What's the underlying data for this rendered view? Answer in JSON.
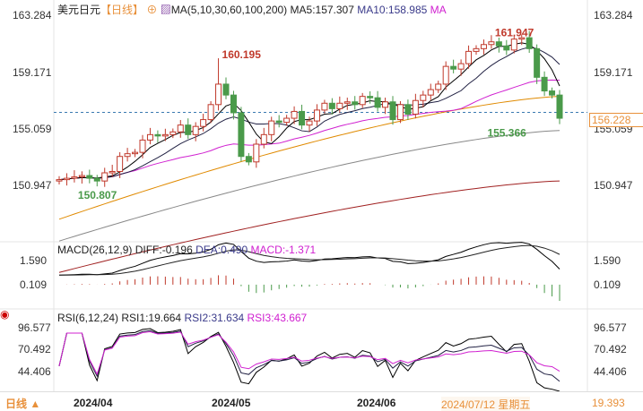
{
  "header": {
    "symbol": "美元日元",
    "period": "【日线】",
    "ma_label": "MA(5,10,30,60,100,200)",
    "ma5": "MA5:157.307",
    "ma10": "MA10:158.985",
    "ma_more": "MA"
  },
  "macd_header": {
    "label": "MACD(26,12,9)",
    "diff": "DIFF:-0.196",
    "dea": "DEA:0.490",
    "macd": "MACD:-1.371"
  },
  "rsi_header": {
    "label": "RSI(6,12,24)",
    "rsi1": "RSI1:19.664",
    "rsi2": "RSI2:31.634",
    "rsi3": "RSI3:43.667"
  },
  "axes": {
    "price": [
      "163.284",
      "159.171",
      "155.059",
      "150.947"
    ],
    "current_price": "156.228",
    "macd": [
      "1.590",
      "0.109"
    ],
    "rsi": [
      "96.577",
      "70.492",
      "44.406",
      "19.393"
    ]
  },
  "footer": {
    "period": "日线",
    "dates": [
      "2024/04",
      "2024/05",
      "2024/06"
    ],
    "cursor_date": "2024/07/12 星期五"
  },
  "annotations": {
    "high1": "160.195",
    "high2": "161.947",
    "low1": "150.807",
    "low2": "155.366"
  },
  "colors": {
    "up": "#c0392b",
    "down": "#4a9a4a",
    "ma5": "#000000",
    "ma10": "#222244",
    "ma30": "#d020d0",
    "ma60": "#e08a00",
    "ma100": "#888888",
    "ma200": "#a02020",
    "accent": "#e8903a"
  },
  "chart_data": {
    "type": "candlestick",
    "title": "美元日元 日线",
    "ylim": [
      150.947,
      163.284
    ],
    "closes": [
      151.3,
      151.4,
      151.5,
      151.6,
      151.4,
      151.2,
      151.8,
      151.9,
      153.0,
      153.2,
      153.3,
      154.2,
      154.6,
      154.5,
      154.6,
      154.8,
      155.3,
      154.6,
      155.2,
      155.7,
      156.8,
      158.3,
      157.5,
      156.2,
      153.0,
      152.6,
      153.9,
      154.6,
      155.6,
      155.5,
      155.8,
      156.3,
      155.3,
      155.6,
      156.4,
      156.9,
      156.5,
      156.9,
      157.0,
      156.8,
      157.4,
      157.3,
      156.6,
      157.0,
      155.7,
      156.8,
      156.1,
      157.1,
      157.5,
      157.9,
      158.3,
      159.6,
      159.4,
      159.8,
      160.7,
      160.9,
      161.2,
      161.4,
      161.1,
      160.8,
      161.6,
      161.7,
      160.9,
      158.8,
      157.8,
      157.5,
      155.8
    ],
    "spikes": {
      "high": [
        [
          21,
          160.195
        ],
        [
          61,
          161.947
        ]
      ],
      "low": [
        [
          5,
          150.807
        ],
        [
          66,
          155.366
        ]
      ]
    },
    "ma_long": {
      "ma60": [
        148.4,
        157.4
      ],
      "ma100": [
        146.8,
        154.9
      ],
      "ma200": [
        144.5,
        151.2
      ]
    },
    "macd_ylim": [
      -1.4,
      2.4
    ],
    "rsi_ylim": [
      19.393,
      96.577
    ]
  }
}
